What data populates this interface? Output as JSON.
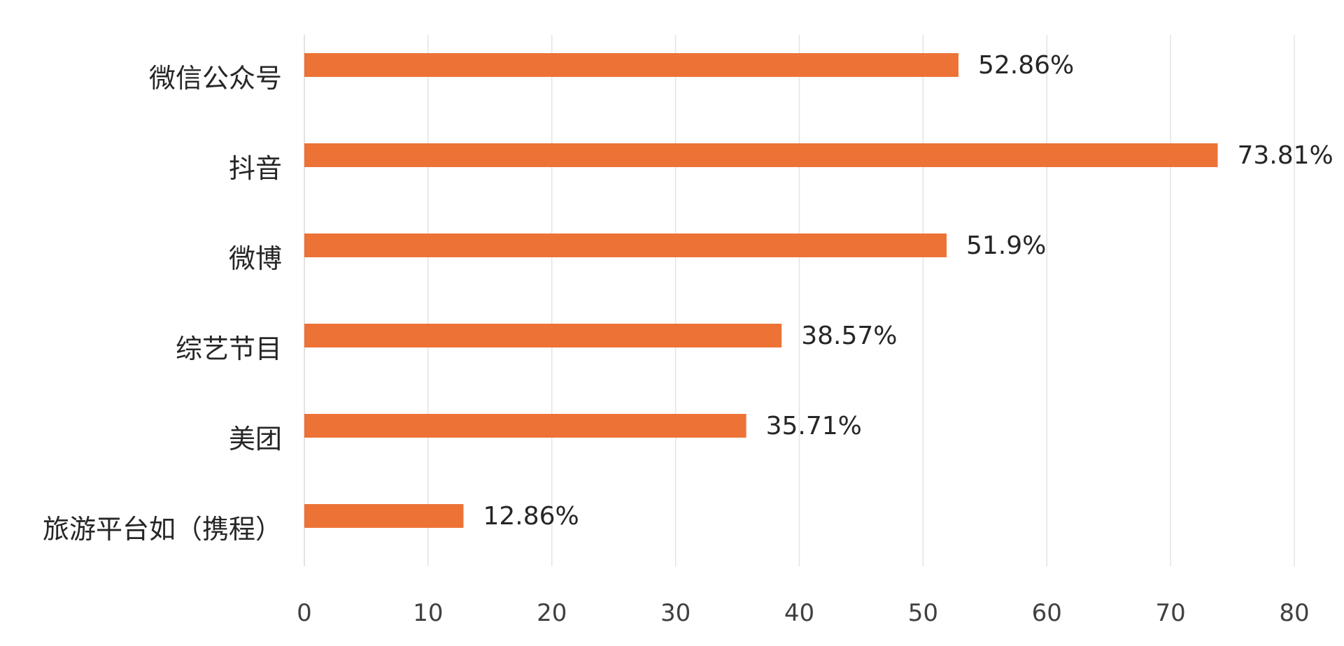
{
  "chart_data": {
    "type": "bar",
    "orientation": "horizontal",
    "categories": [
      "微信公众号",
      "抖音",
      "微博",
      "综艺节目",
      "美团",
      "旅游平台如（携程）"
    ],
    "values": [
      52.86,
      73.81,
      51.9,
      38.57,
      35.71,
      12.86
    ],
    "data_labels": [
      "52.86%",
      "73.81%",
      "51.9%",
      "38.57%",
      "35.71%",
      "12.86%"
    ],
    "x_ticks": [
      "0",
      "10",
      "20",
      "30",
      "40",
      "50",
      "60",
      "70",
      "80"
    ],
    "xlim": [
      0,
      80
    ],
    "grid": true,
    "bar_color": "#ED7236",
    "title": "",
    "xlabel": "",
    "ylabel": ""
  }
}
